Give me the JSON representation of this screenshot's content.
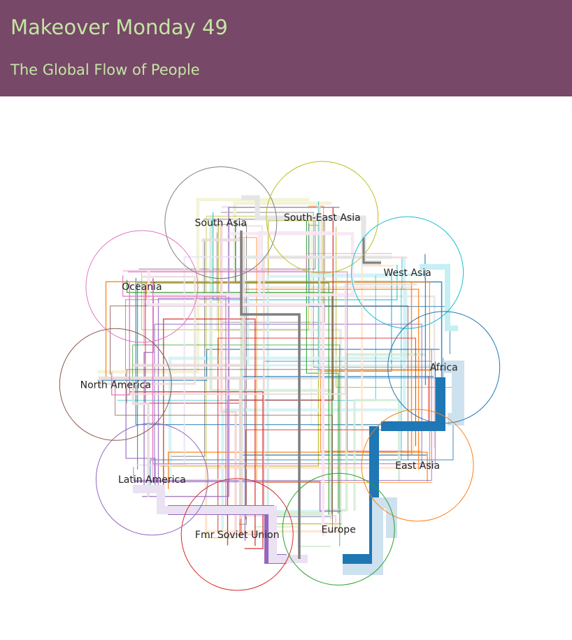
{
  "header": {
    "title": "Makeover Monday 49",
    "subtitle": "The Global Flow of People"
  },
  "diagram": {
    "type": "circular-region-flow",
    "regions": [
      {
        "name": "South Asia",
        "color": "#7f7f7f"
      },
      {
        "name": "South-East Asia",
        "color": "#bcbd22"
      },
      {
        "name": "West Asia",
        "color": "#17becf"
      },
      {
        "name": "Africa",
        "color": "#1f77b4"
      },
      {
        "name": "East Asia",
        "color": "#ff7f0e"
      },
      {
        "name": "Europe",
        "color": "#2ca02c"
      },
      {
        "name": "Fmr Soviet Union",
        "color": "#d62728"
      },
      {
        "name": "Latin America",
        "color": "#9467bd"
      },
      {
        "name": "North America",
        "color": "#8c564b"
      },
      {
        "name": "Oceania",
        "color": "#e377c2"
      }
    ],
    "colors": {
      "header_bg": "#774867",
      "header_text": "#c3e6a4",
      "circle_fill": "#ffffff"
    }
  }
}
